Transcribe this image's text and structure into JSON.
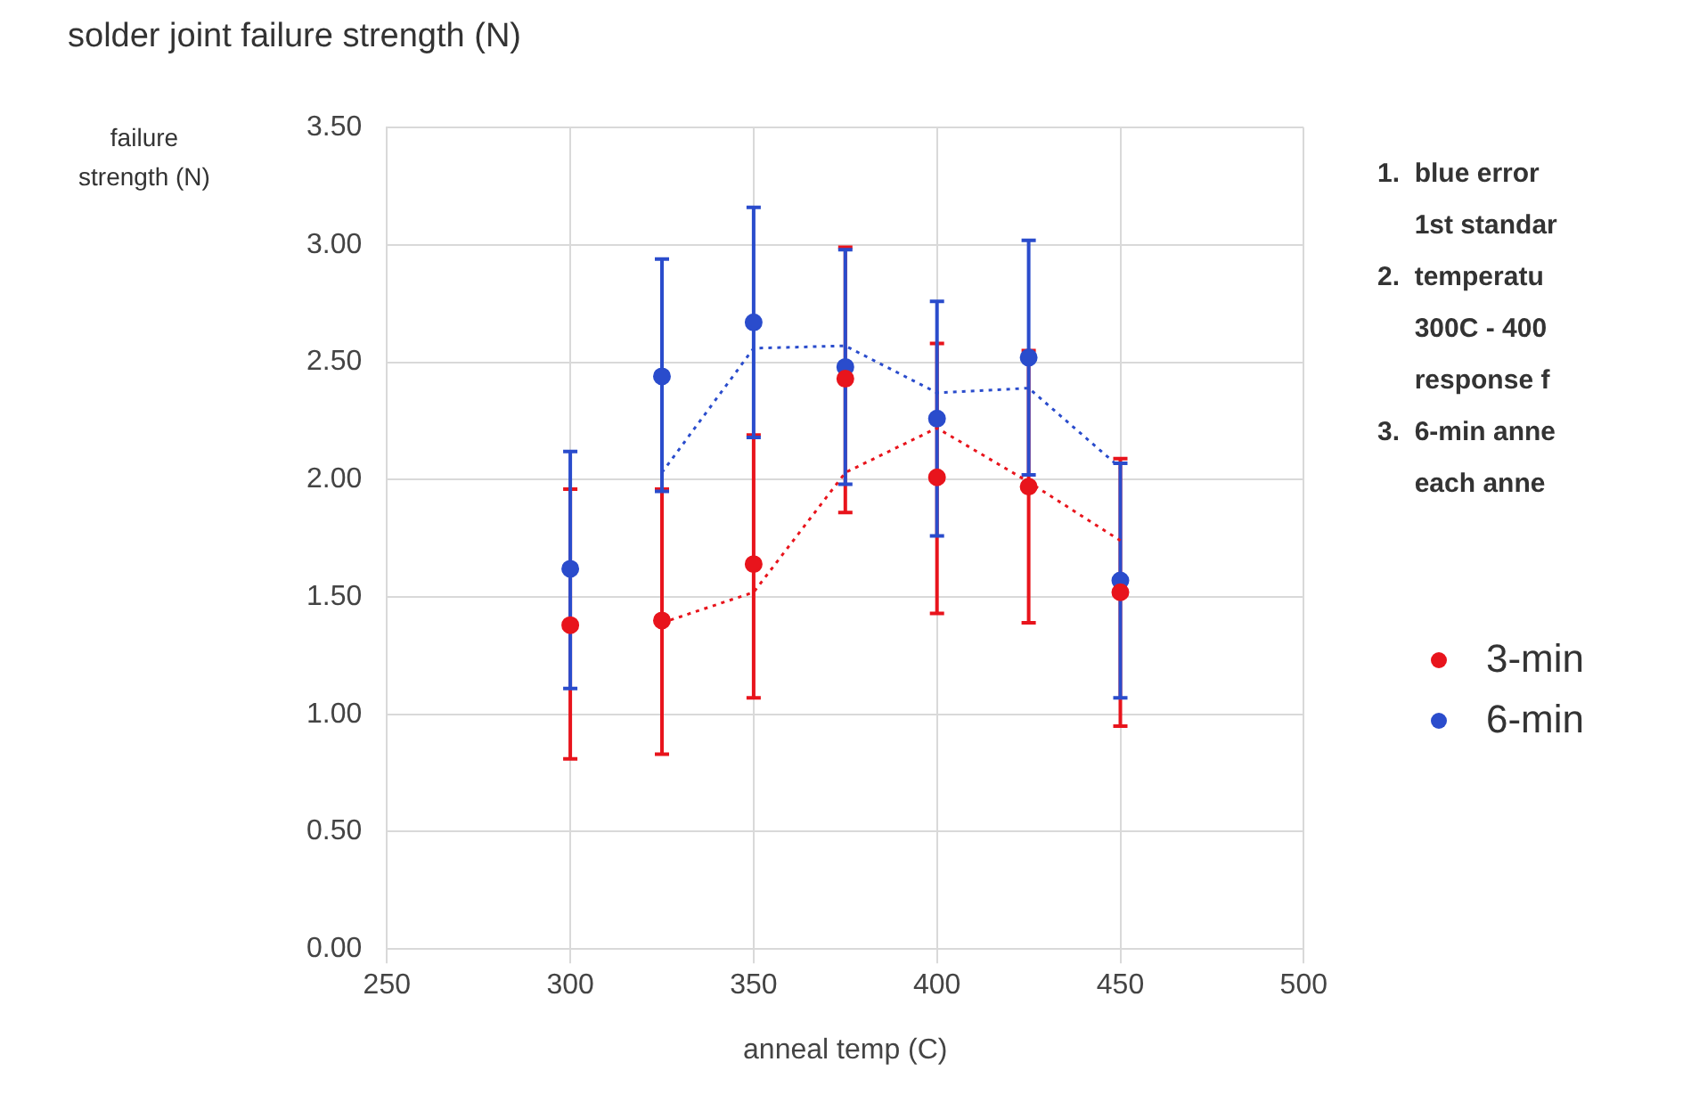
{
  "chart_data": {
    "type": "scatter",
    "title": "solder joint failure strength (N)",
    "xlabel": "anneal temp (C)",
    "ylabel": "failure strength (N)",
    "xlim": [
      250,
      500
    ],
    "xticks": [
      250,
      300,
      350,
      400,
      450,
      500
    ],
    "ylim": [
      0,
      3.5
    ],
    "yticks": [
      {
        "value": 0,
        "label": "0.00"
      },
      {
        "value": 0.5,
        "label": "0.50"
      },
      {
        "value": 1,
        "label": "1.00"
      },
      {
        "value": 1.5,
        "label": "1.50"
      },
      {
        "value": 2,
        "label": "2.00"
      },
      {
        "value": 2.5,
        "label": "2.50"
      },
      {
        "value": 3,
        "label": "3.00"
      },
      {
        "value": 3.5,
        "label": "3.50"
      }
    ],
    "grid": true,
    "legend": "right",
    "marker": "circle",
    "annotations": [
      "1.  blue error\n     1st standar",
      "2.  temperatu\n     300C - 400\n     response f",
      "3.  6-min anne\n     each anne"
    ],
    "series": [
      {
        "name": "3-min",
        "type": "scatter",
        "color": "#e8141c",
        "x": [
          300,
          325,
          350,
          375,
          400,
          425,
          450
        ],
        "values": [
          1.38,
          1.4,
          1.64,
          2.43,
          2.01,
          1.97,
          1.52
        ],
        "errors": [
          [
            0.81,
            1.96
          ],
          [
            0.83,
            1.96
          ],
          [
            1.07,
            2.19
          ],
          [
            1.86,
            2.99
          ],
          [
            1.43,
            2.58
          ],
          [
            1.39,
            2.55
          ],
          [
            0.95,
            2.09
          ]
        ]
      },
      {
        "name": "6-min",
        "type": "scatter",
        "color": "#2a4ccc",
        "x": [
          300,
          325,
          350,
          375,
          400,
          425,
          450
        ],
        "values": [
          1.62,
          2.44,
          2.67,
          2.48,
          2.26,
          2.52,
          1.57
        ],
        "errors": [
          [
            1.11,
            2.12
          ],
          [
            1.95,
            2.94
          ],
          [
            2.18,
            3.16
          ],
          [
            1.98,
            2.98
          ],
          [
            1.76,
            2.76
          ],
          [
            2.02,
            3.02
          ],
          [
            1.07,
            2.07
          ]
        ]
      },
      {
        "type": "line",
        "color": "#e8141c",
        "line_style": "dotted",
        "marker": "none",
        "x": [
          325,
          350,
          375,
          400,
          425,
          450
        ],
        "values": [
          1.39,
          1.52,
          2.03,
          2.22,
          1.99,
          1.74
        ]
      },
      {
        "type": "line",
        "color": "#2a4ccc",
        "line_style": "dotted",
        "marker": "none",
        "x": [
          325,
          350,
          375,
          400,
          425,
          450
        ],
        "values": [
          2.03,
          2.56,
          2.57,
          2.37,
          2.39,
          2.05
        ]
      }
    ]
  }
}
